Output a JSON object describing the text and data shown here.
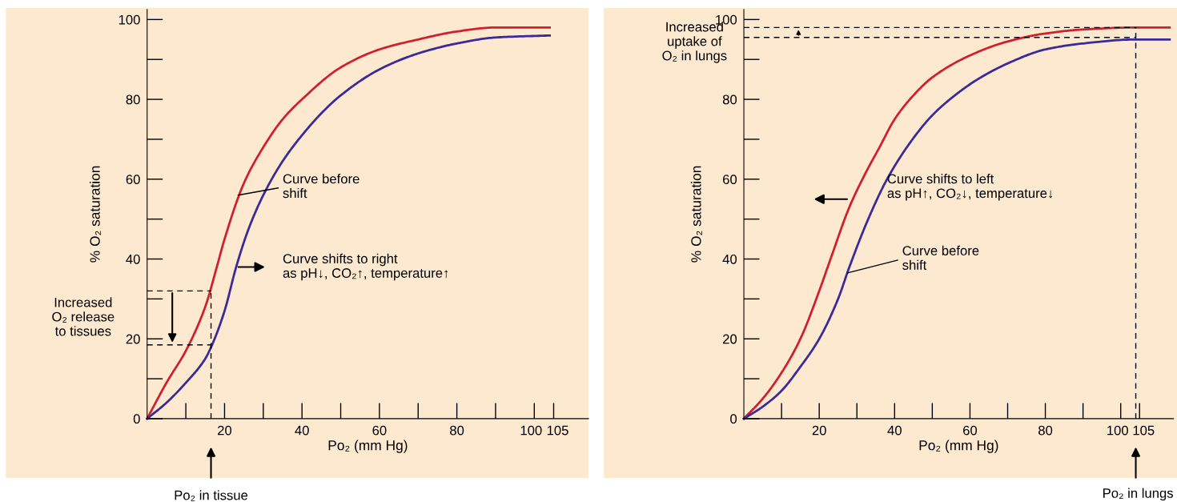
{
  "chart_data": [
    {
      "type": "line",
      "xlabel": "Po₂ (mm Hg)",
      "ylabel": "% O₂ saturation",
      "xlim": [
        0,
        114
      ],
      "ylim": [
        0,
        102.5
      ],
      "xticks": [
        20,
        40,
        60,
        80,
        100,
        105
      ],
      "yticks": [
        0,
        20,
        40,
        60,
        80,
        100
      ],
      "series": [
        {
          "color": "#d0202e",
          "x": [
            0,
            5,
            10,
            15,
            18,
            20,
            25,
            30,
            35,
            40,
            50,
            60,
            70,
            80,
            90,
            104
          ],
          "values": [
            0,
            9,
            17,
            28,
            38,
            45,
            59,
            68,
            75,
            80,
            88,
            92.5,
            95,
            97,
            98,
            98
          ]
        },
        {
          "color": "#3a2a9a",
          "x": [
            0,
            5,
            10,
            15,
            17,
            20,
            23,
            26,
            30,
            35,
            40,
            45,
            50,
            60,
            70,
            80,
            90,
            104
          ],
          "values": [
            0,
            4,
            9,
            15,
            19,
            27,
            38,
            47,
            56,
            64.5,
            71,
            76.5,
            81,
            87.5,
            91.5,
            94,
            95.5,
            96
          ]
        },
        {
          "color": "#000000",
          "line_style": "dashed",
          "x": [
            0,
            16.5
          ],
          "values": [
            32,
            32
          ]
        },
        {
          "color": "#000000",
          "line_style": "dashed",
          "x": [
            0,
            16.5
          ],
          "values": [
            18.5,
            18.5
          ]
        },
        {
          "color": "#000000",
          "line_style": "dashed",
          "x": [
            16.5,
            16.5
          ],
          "values": [
            0,
            32
          ]
        }
      ],
      "annotations": [
        {
          "text": "Curve before\nshift",
          "x": 23.5,
          "y": 56
        },
        "Curve shifts to right\nas pH↓, CO₂↑, temperature↑",
        "Increased\nO₂ release\nto tissues",
        "Po₂ in tissue"
      ]
    },
    {
      "type": "line",
      "xlabel": "Po₂ (mm Hg)",
      "ylabel": "% O₂ saturation",
      "xlim": [
        0,
        114
      ],
      "ylim": [
        0,
        102.5
      ],
      "xticks": [
        20,
        40,
        60,
        80,
        100,
        105
      ],
      "yticks": [
        0,
        20,
        40,
        60,
        80,
        100
      ],
      "series": [
        {
          "color": "#d0202e",
          "x": [
            0,
            5,
            10,
            15,
            20,
            23,
            28,
            32,
            36,
            40,
            45,
            50,
            60,
            70,
            80,
            90,
            104,
            113
          ],
          "values": [
            0,
            5,
            11.5,
            20,
            32,
            40,
            53,
            61,
            68,
            75,
            81,
            85.5,
            91,
            94.5,
            96.5,
            97.5,
            98,
            98
          ]
        },
        {
          "color": "#3a2a9a",
          "x": [
            0,
            5,
            10,
            15,
            20,
            25,
            28,
            33,
            38,
            44,
            50,
            56,
            62,
            70,
            80,
            90,
            104,
            113
          ],
          "values": [
            0,
            3,
            7,
            13,
            20,
            30,
            38,
            50,
            60,
            69,
            76,
            81,
            85,
            89,
            92.5,
            94,
            95,
            95
          ]
        },
        {
          "color": "#000000",
          "line_style": "dashed",
          "x": [
            0,
            104
          ],
          "values": [
            98,
            98
          ]
        },
        {
          "color": "#000000",
          "line_style": "dashed",
          "x": [
            0,
            104
          ],
          "values": [
            95.5,
            95.5
          ]
        },
        {
          "color": "#000000",
          "line_style": "dashed",
          "x": [
            104,
            104
          ],
          "values": [
            0,
            98
          ]
        }
      ],
      "annotations": [
        "Curve shifts to left\nas pH↑, CO₂↓, temperature↓",
        {
          "text": "Curve before\nshift",
          "x": 27.5,
          "y": 36.5
        },
        "Increased\nuptake of\nO₂ in lungs",
        "Po₂ in lungs"
      ]
    }
  ]
}
